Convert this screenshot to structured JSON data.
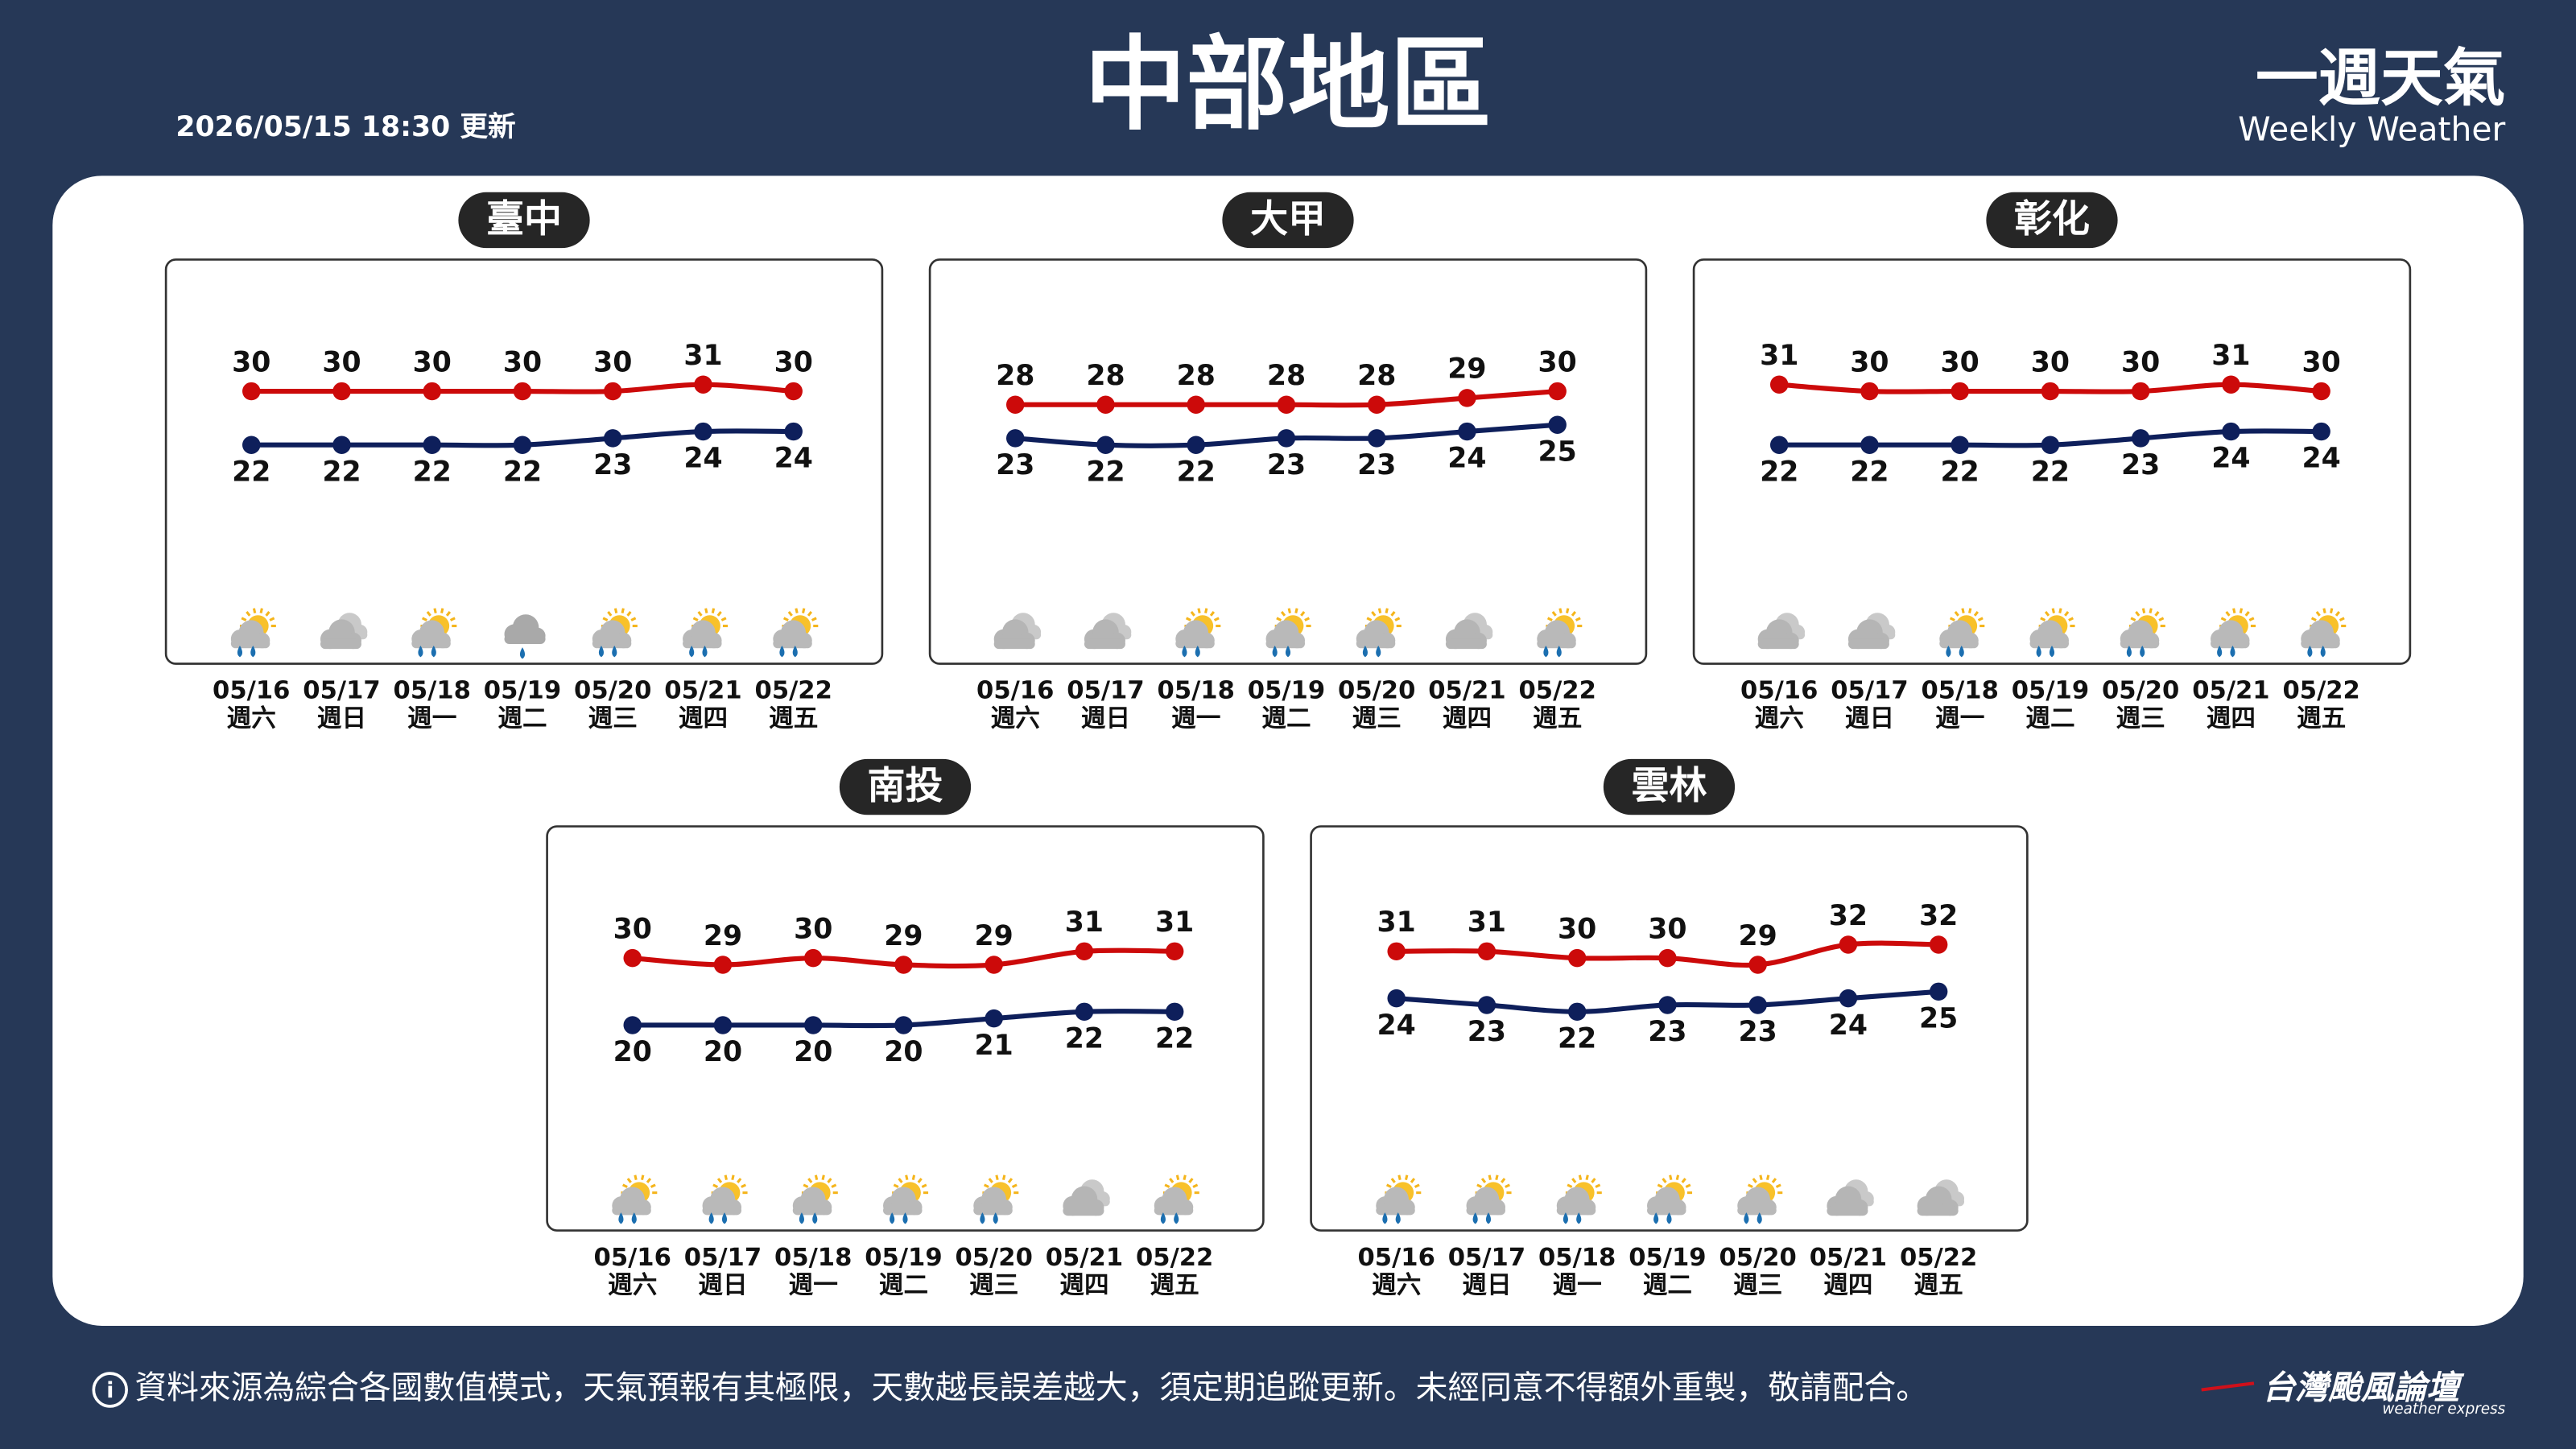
{
  "header": {
    "title": "中部地區",
    "updated": "2026/05/15 18:30 更新",
    "brand": "一週天氣",
    "brand_en": "Weekly Weather"
  },
  "chart_data": [
    {
      "type": "line",
      "title": "臺中",
      "categories": [
        "05/16",
        "05/17",
        "05/18",
        "05/19",
        "05/20",
        "05/21",
        "05/22"
      ],
      "weekdays": [
        "週六",
        "週日",
        "週一",
        "週二",
        "週三",
        "週四",
        "週五"
      ],
      "icons": [
        "sun-rain",
        "cloudy",
        "sun-rain",
        "rain",
        "sun-rain",
        "sun-rain",
        "sun-rain"
      ],
      "series": [
        {
          "color": "#cc0a0a",
          "values": [
            30,
            30,
            30,
            30,
            30,
            31,
            30
          ]
        },
        {
          "color": "#0e1f5b",
          "values": [
            22,
            22,
            22,
            22,
            23,
            24,
            24
          ]
        }
      ]
    },
    {
      "type": "line",
      "title": "大甲",
      "categories": [
        "05/16",
        "05/17",
        "05/18",
        "05/19",
        "05/20",
        "05/21",
        "05/22"
      ],
      "weekdays": [
        "週六",
        "週日",
        "週一",
        "週二",
        "週三",
        "週四",
        "週五"
      ],
      "icons": [
        "cloudy",
        "cloudy",
        "sun-rain",
        "sun-rain",
        "sun-rain",
        "cloudy",
        "sun-rain"
      ],
      "series": [
        {
          "color": "#cc0a0a",
          "values": [
            28,
            28,
            28,
            28,
            28,
            29,
            30
          ]
        },
        {
          "color": "#0e1f5b",
          "values": [
            23,
            22,
            22,
            23,
            23,
            24,
            25
          ]
        }
      ]
    },
    {
      "type": "line",
      "title": "彰化",
      "categories": [
        "05/16",
        "05/17",
        "05/18",
        "05/19",
        "05/20",
        "05/21",
        "05/22"
      ],
      "weekdays": [
        "週六",
        "週日",
        "週一",
        "週二",
        "週三",
        "週四",
        "週五"
      ],
      "icons": [
        "cloudy",
        "cloudy",
        "sun-rain",
        "sun-rain",
        "sun-rain",
        "sun-rain",
        "sun-rain"
      ],
      "series": [
        {
          "color": "#cc0a0a",
          "values": [
            31,
            30,
            30,
            30,
            30,
            31,
            30
          ]
        },
        {
          "color": "#0e1f5b",
          "values": [
            22,
            22,
            22,
            22,
            23,
            24,
            24
          ]
        }
      ]
    },
    {
      "type": "line",
      "title": "南投",
      "categories": [
        "05/16",
        "05/17",
        "05/18",
        "05/19",
        "05/20",
        "05/21",
        "05/22"
      ],
      "weekdays": [
        "週六",
        "週日",
        "週一",
        "週二",
        "週三",
        "週四",
        "週五"
      ],
      "icons": [
        "sun-rain",
        "sun-rain",
        "sun-rain",
        "sun-rain",
        "sun-rain",
        "cloudy",
        "sun-rain"
      ],
      "series": [
        {
          "color": "#cc0a0a",
          "values": [
            30,
            29,
            30,
            29,
            29,
            31,
            31
          ]
        },
        {
          "color": "#0e1f5b",
          "values": [
            20,
            20,
            20,
            20,
            21,
            22,
            22
          ]
        }
      ]
    },
    {
      "type": "line",
      "title": "雲林",
      "categories": [
        "05/16",
        "05/17",
        "05/18",
        "05/19",
        "05/20",
        "05/21",
        "05/22"
      ],
      "weekdays": [
        "週六",
        "週日",
        "週一",
        "週二",
        "週三",
        "週四",
        "週五"
      ],
      "icons": [
        "sun-rain",
        "sun-rain",
        "sun-rain",
        "sun-rain",
        "sun-rain",
        "cloudy",
        "cloudy"
      ],
      "series": [
        {
          "color": "#cc0a0a",
          "values": [
            31,
            31,
            30,
            30,
            29,
            32,
            32
          ]
        },
        {
          "color": "#0e1f5b",
          "values": [
            24,
            23,
            22,
            23,
            23,
            24,
            25
          ]
        }
      ]
    }
  ],
  "footer": {
    "note": "資料來源為綜合各國數值模式，天氣預報有其極限，天數越長誤差越大，須定期追蹤更新。未經同意不得額外重製，敬請配合。",
    "logo": "台灣颱風論壇",
    "logo_en": "weather express"
  }
}
